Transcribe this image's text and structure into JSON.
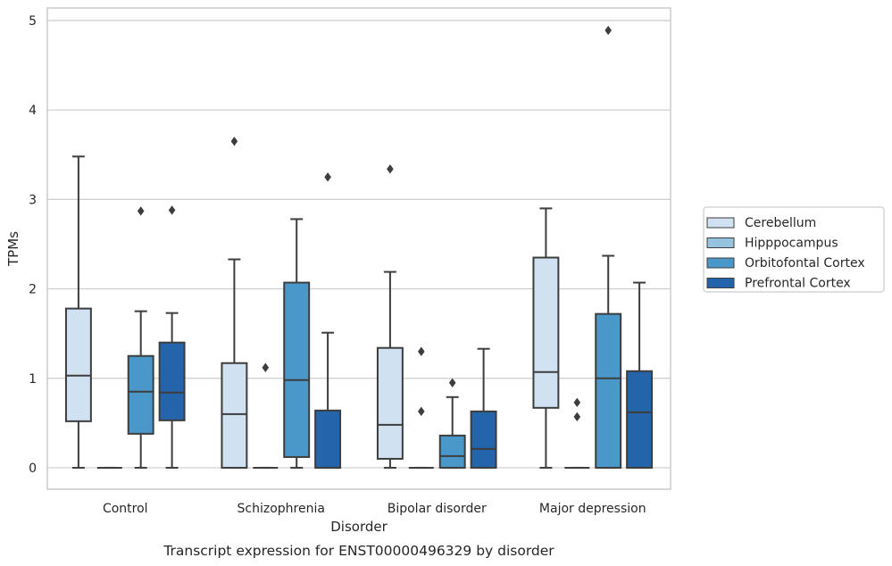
{
  "chart_data": {
    "type": "box",
    "categories": [
      "Control",
      "Schizophrenia",
      "Bipolar disorder",
      "Major depression"
    ],
    "xlabel": "Disorder",
    "ylabel": "TPMs",
    "caption": "Transcript expression for ENST00000496329 by disorder",
    "ylim": [
      -0.24,
      5.14
    ],
    "yticks": [
      0,
      1,
      2,
      3,
      4,
      5
    ],
    "grid": "horizontal",
    "legend_position": "right",
    "colors": {
      "Cerebellum": "#d0e1f2",
      "Hipppocampus": "#94c4df",
      "Orbitofontal Cortex": "#4a98c9",
      "Prefrontal Cortex": "#2464ab",
      "edge": "#3d3d3d",
      "grid": "#cccccc",
      "frame": "#cccccc"
    },
    "series": [
      {
        "name": "Cerebellum",
        "boxes": [
          {
            "whislo": 0,
            "q1": 0.52,
            "med": 1.03,
            "q3": 1.78,
            "whishi": 3.48,
            "fliers": []
          },
          {
            "whislo": 0,
            "q1": 0,
            "med": 0.6,
            "q3": 1.17,
            "whishi": 2.33,
            "fliers": [
              3.65
            ]
          },
          {
            "whislo": 0,
            "q1": 0.1,
            "med": 0.48,
            "q3": 1.34,
            "whishi": 2.19,
            "fliers": [
              3.34
            ]
          },
          {
            "whislo": 0,
            "q1": 0.67,
            "med": 1.07,
            "q3": 2.35,
            "whishi": 2.9,
            "fliers": []
          }
        ]
      },
      {
        "name": "Hipppocampus",
        "boxes": [
          {
            "whislo": 0,
            "q1": 0,
            "med": 0,
            "q3": 0,
            "whishi": 0,
            "fliers": []
          },
          {
            "whislo": 0,
            "q1": 0,
            "med": 0,
            "q3": 0,
            "whishi": 0,
            "fliers": [
              1.12
            ]
          },
          {
            "whislo": 0,
            "q1": 0,
            "med": 0,
            "q3": 0,
            "whishi": 0,
            "fliers": [
              0.63,
              1.3
            ]
          },
          {
            "whislo": 0,
            "q1": 0,
            "med": 0,
            "q3": 0,
            "whishi": 0,
            "fliers": [
              0.57,
              0.73
            ]
          }
        ]
      },
      {
        "name": "Orbitofontal Cortex",
        "boxes": [
          {
            "whislo": 0,
            "q1": 0.38,
            "med": 0.85,
            "q3": 1.25,
            "whishi": 1.75,
            "fliers": [
              2.87
            ]
          },
          {
            "whislo": 0,
            "q1": 0.12,
            "med": 0.98,
            "q3": 2.07,
            "whishi": 2.78,
            "fliers": []
          },
          {
            "whislo": 0,
            "q1": 0,
            "med": 0.13,
            "q3": 0.36,
            "whishi": 0.79,
            "fliers": [
              0.95
            ]
          },
          {
            "whislo": 0,
            "q1": 0,
            "med": 1.0,
            "q3": 1.72,
            "whishi": 2.37,
            "fliers": [
              4.89
            ]
          }
        ]
      },
      {
        "name": "Prefrontal Cortex",
        "boxes": [
          {
            "whislo": 0,
            "q1": 0.53,
            "med": 0.84,
            "q3": 1.4,
            "whishi": 1.73,
            "fliers": [
              2.88
            ]
          },
          {
            "whislo": 0,
            "q1": 0,
            "med": 0,
            "q3": 0.64,
            "whishi": 1.51,
            "fliers": [
              3.25
            ]
          },
          {
            "whislo": 0,
            "q1": 0,
            "med": 0.21,
            "q3": 0.63,
            "whishi": 1.33,
            "fliers": []
          },
          {
            "whislo": 0,
            "q1": 0,
            "med": 0.62,
            "q3": 1.08,
            "whishi": 2.07,
            "fliers": []
          }
        ]
      }
    ]
  }
}
